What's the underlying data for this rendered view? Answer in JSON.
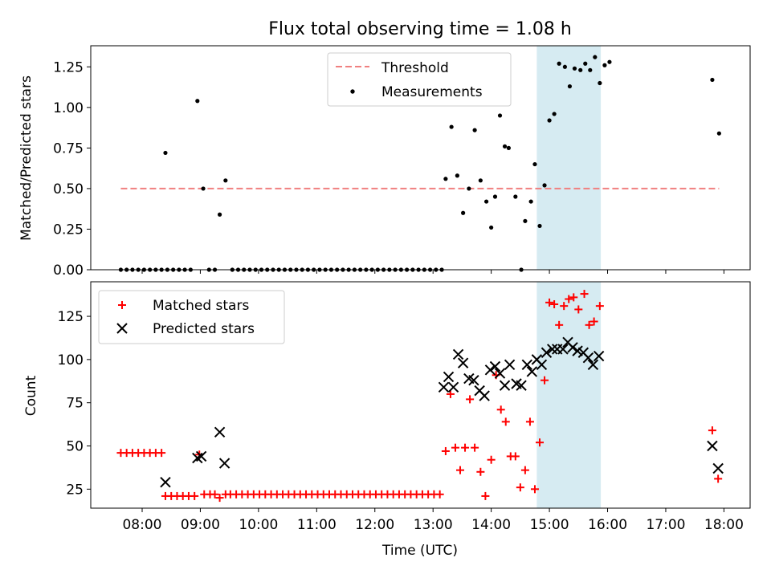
{
  "figure": {
    "title": "Flux total observing time = 1.08 h"
  },
  "colors": {
    "threshold": "#f08080",
    "measurement": "#000000",
    "matched": "#ff0000",
    "predicted": "#000000",
    "highlight": "#add8e6"
  },
  "chart_data": [
    {
      "type": "scatter",
      "ylabel": "Matched/Predicted stars",
      "xlabel": "",
      "ylim": [
        0,
        1.38
      ],
      "yticks": [
        "0.00",
        "0.25",
        "0.50",
        "0.75",
        "1.00",
        "1.25"
      ],
      "grid": false,
      "legend_placement": "top-center",
      "legend": [
        "Threshold",
        "Measurements"
      ],
      "highlight_span": [
        "14:47",
        "15:53"
      ],
      "threshold": {
        "name": "Threshold",
        "y": 0.5,
        "x_from": "07:38",
        "x_to": "17:55"
      },
      "series": [
        {
          "name": "Measurements",
          "points": [
            [
              "07:38",
              0
            ],
            [
              "07:44",
              0
            ],
            [
              "07:50",
              0
            ],
            [
              "07:56",
              0
            ],
            [
              "08:02",
              0
            ],
            [
              "08:08",
              0
            ],
            [
              "08:14",
              0
            ],
            [
              "08:20",
              0
            ],
            [
              "08:24",
              0.72
            ],
            [
              "08:26",
              0
            ],
            [
              "08:32",
              0
            ],
            [
              "08:38",
              0
            ],
            [
              "08:44",
              0
            ],
            [
              "08:50",
              0
            ],
            [
              "08:57",
              1.04
            ],
            [
              "09:03",
              0.5
            ],
            [
              "09:09",
              0
            ],
            [
              "09:15",
              0
            ],
            [
              "09:20",
              0.34
            ],
            [
              "09:26",
              0.55
            ],
            [
              "09:33",
              0
            ],
            [
              "09:39",
              0
            ],
            [
              "09:45",
              0
            ],
            [
              "09:51",
              0
            ],
            [
              "09:57",
              0
            ],
            [
              "10:03",
              0
            ],
            [
              "10:09",
              0
            ],
            [
              "10:15",
              0
            ],
            [
              "10:21",
              0
            ],
            [
              "10:27",
              0
            ],
            [
              "10:33",
              0
            ],
            [
              "10:39",
              0
            ],
            [
              "10:45",
              0
            ],
            [
              "10:51",
              0
            ],
            [
              "10:57",
              0
            ],
            [
              "11:03",
              0
            ],
            [
              "11:09",
              0
            ],
            [
              "11:15",
              0
            ],
            [
              "11:21",
              0
            ],
            [
              "11:27",
              0
            ],
            [
              "11:33",
              0
            ],
            [
              "11:39",
              0
            ],
            [
              "11:45",
              0
            ],
            [
              "11:51",
              0
            ],
            [
              "11:57",
              0
            ],
            [
              "12:03",
              0
            ],
            [
              "12:09",
              0
            ],
            [
              "12:15",
              0
            ],
            [
              "12:21",
              0
            ],
            [
              "12:27",
              0
            ],
            [
              "12:33",
              0
            ],
            [
              "12:39",
              0
            ],
            [
              "12:45",
              0
            ],
            [
              "12:51",
              0
            ],
            [
              "12:57",
              0
            ],
            [
              "13:03",
              0
            ],
            [
              "13:09",
              0
            ],
            [
              "13:13",
              0.56
            ],
            [
              "13:19",
              0.88
            ],
            [
              "13:25",
              0.58
            ],
            [
              "13:31",
              0.35
            ],
            [
              "13:37",
              0.5
            ],
            [
              "13:43",
              0.86
            ],
            [
              "13:49",
              0.55
            ],
            [
              "13:55",
              0.42
            ],
            [
              "14:00",
              0.26
            ],
            [
              "14:04",
              0.45
            ],
            [
              "14:09",
              0.95
            ],
            [
              "14:14",
              0.76
            ],
            [
              "14:18",
              0.75
            ],
            [
              "14:25",
              0.45
            ],
            [
              "14:31",
              0
            ],
            [
              "14:35",
              0.3
            ],
            [
              "14:41",
              0.42
            ],
            [
              "14:45",
              0.65
            ],
            [
              "14:50",
              0.27
            ],
            [
              "14:55",
              0.52
            ],
            [
              "15:00",
              0.92
            ],
            [
              "15:05",
              0.96
            ],
            [
              "15:10",
              1.27
            ],
            [
              "15:16",
              1.25
            ],
            [
              "15:21",
              1.13
            ],
            [
              "15:26",
              1.24
            ],
            [
              "15:32",
              1.23
            ],
            [
              "15:37",
              1.27
            ],
            [
              "15:42",
              1.23
            ],
            [
              "15:47",
              1.31
            ],
            [
              "15:52",
              1.15
            ],
            [
              "15:57",
              1.26
            ],
            [
              "16:02",
              1.28
            ],
            [
              "17:48",
              1.17
            ],
            [
              "17:55",
              0.84
            ]
          ]
        }
      ]
    },
    {
      "type": "scatter",
      "xlabel": "Time (UTC)",
      "ylabel": "Count",
      "ylim": [
        14,
        145
      ],
      "yticks": [
        "25",
        "50",
        "75",
        "100",
        "125"
      ],
      "xlim": [
        "07:07",
        "18:27"
      ],
      "xticks": [
        "08:00",
        "09:00",
        "10:00",
        "11:00",
        "12:00",
        "13:00",
        "14:00",
        "15:00",
        "16:00",
        "17:00",
        "18:00"
      ],
      "grid": false,
      "legend_placement": "top-left",
      "legend": [
        "Matched stars",
        "Predicted stars"
      ],
      "highlight_span": [
        "14:47",
        "15:53"
      ],
      "series": [
        {
          "name": "Matched stars",
          "marker": "+",
          "points": [
            [
              "07:38",
              46
            ],
            [
              "07:44",
              46
            ],
            [
              "07:50",
              46
            ],
            [
              "07:56",
              46
            ],
            [
              "08:02",
              46
            ],
            [
              "08:08",
              46
            ],
            [
              "08:14",
              46
            ],
            [
              "08:20",
              46
            ],
            [
              "08:24",
              21
            ],
            [
              "08:30",
              21
            ],
            [
              "08:36",
              21
            ],
            [
              "08:42",
              21
            ],
            [
              "08:48",
              21
            ],
            [
              "08:54",
              21
            ],
            [
              "08:59",
              45
            ],
            [
              "09:04",
              22
            ],
            [
              "09:10",
              22
            ],
            [
              "09:15",
              22
            ],
            [
              "09:20",
              20
            ],
            [
              "09:26",
              22
            ],
            [
              "09:31",
              22
            ],
            [
              "09:37",
              22
            ],
            [
              "09:43",
              22
            ],
            [
              "09:49",
              22
            ],
            [
              "09:55",
              22
            ],
            [
              "10:01",
              22
            ],
            [
              "10:07",
              22
            ],
            [
              "10:13",
              22
            ],
            [
              "10:19",
              22
            ],
            [
              "10:25",
              22
            ],
            [
              "10:31",
              22
            ],
            [
              "10:37",
              22
            ],
            [
              "10:43",
              22
            ],
            [
              "10:49",
              22
            ],
            [
              "10:55",
              22
            ],
            [
              "11:01",
              22
            ],
            [
              "11:07",
              22
            ],
            [
              "11:13",
              22
            ],
            [
              "11:19",
              22
            ],
            [
              "11:25",
              22
            ],
            [
              "11:31",
              22
            ],
            [
              "11:37",
              22
            ],
            [
              "11:43",
              22
            ],
            [
              "11:49",
              22
            ],
            [
              "11:55",
              22
            ],
            [
              "12:01",
              22
            ],
            [
              "12:07",
              22
            ],
            [
              "12:13",
              22
            ],
            [
              "12:19",
              22
            ],
            [
              "12:25",
              22
            ],
            [
              "12:31",
              22
            ],
            [
              "12:37",
              22
            ],
            [
              "12:43",
              22
            ],
            [
              "12:49",
              22
            ],
            [
              "12:55",
              22
            ],
            [
              "13:01",
              22
            ],
            [
              "13:07",
              22
            ],
            [
              "13:13",
              47
            ],
            [
              "13:18",
              80
            ],
            [
              "13:23",
              49
            ],
            [
              "13:28",
              36
            ],
            [
              "13:33",
              49
            ],
            [
              "13:38",
              77
            ],
            [
              "13:43",
              49
            ],
            [
              "13:49",
              35
            ],
            [
              "13:54",
              21
            ],
            [
              "14:00",
              42
            ],
            [
              "14:05",
              91
            ],
            [
              "14:10",
              71
            ],
            [
              "14:15",
              64
            ],
            [
              "14:20",
              44
            ],
            [
              "14:25",
              44
            ],
            [
              "14:30",
              26
            ],
            [
              "14:35",
              36
            ],
            [
              "14:40",
              64
            ],
            [
              "14:45",
              25
            ],
            [
              "14:50",
              52
            ],
            [
              "14:55",
              88
            ],
            [
              "15:00",
              133
            ],
            [
              "15:05",
              132
            ],
            [
              "15:10",
              120
            ],
            [
              "15:15",
              131
            ],
            [
              "15:20",
              135
            ],
            [
              "15:25",
              136
            ],
            [
              "15:30",
              129
            ],
            [
              "15:36",
              138
            ],
            [
              "15:41",
              120
            ],
            [
              "15:46",
              122
            ],
            [
              "15:52",
              131
            ],
            [
              "17:48",
              59
            ],
            [
              "17:54",
              31
            ]
          ]
        },
        {
          "name": "Predicted stars",
          "marker": "x",
          "points": [
            [
              "08:24",
              29
            ],
            [
              "08:57",
              43
            ],
            [
              "09:01",
              44
            ],
            [
              "09:20",
              58
            ],
            [
              "09:25",
              40
            ],
            [
              "13:11",
              84
            ],
            [
              "13:16",
              90
            ],
            [
              "13:21",
              84
            ],
            [
              "13:26",
              103
            ],
            [
              "13:31",
              98
            ],
            [
              "13:37",
              89
            ],
            [
              "13:42",
              88
            ],
            [
              "13:48",
              82
            ],
            [
              "13:53",
              79
            ],
            [
              "13:59",
              94
            ],
            [
              "14:04",
              96
            ],
            [
              "14:09",
              92
            ],
            [
              "14:14",
              85
            ],
            [
              "14:19",
              97
            ],
            [
              "14:26",
              86
            ],
            [
              "14:31",
              85
            ],
            [
              "14:37",
              97
            ],
            [
              "14:42",
              93
            ],
            [
              "14:47",
              100
            ],
            [
              "14:52",
              97
            ],
            [
              "14:57",
              104
            ],
            [
              "15:03",
              106
            ],
            [
              "15:08",
              106
            ],
            [
              "15:14",
              106
            ],
            [
              "15:19",
              110
            ],
            [
              "15:24",
              107
            ],
            [
              "15:29",
              105
            ],
            [
              "15:35",
              104
            ],
            [
              "15:40",
              101
            ],
            [
              "15:45",
              97
            ],
            [
              "15:51",
              102
            ],
            [
              "17:48",
              50
            ],
            [
              "17:54",
              37
            ]
          ]
        }
      ]
    }
  ]
}
